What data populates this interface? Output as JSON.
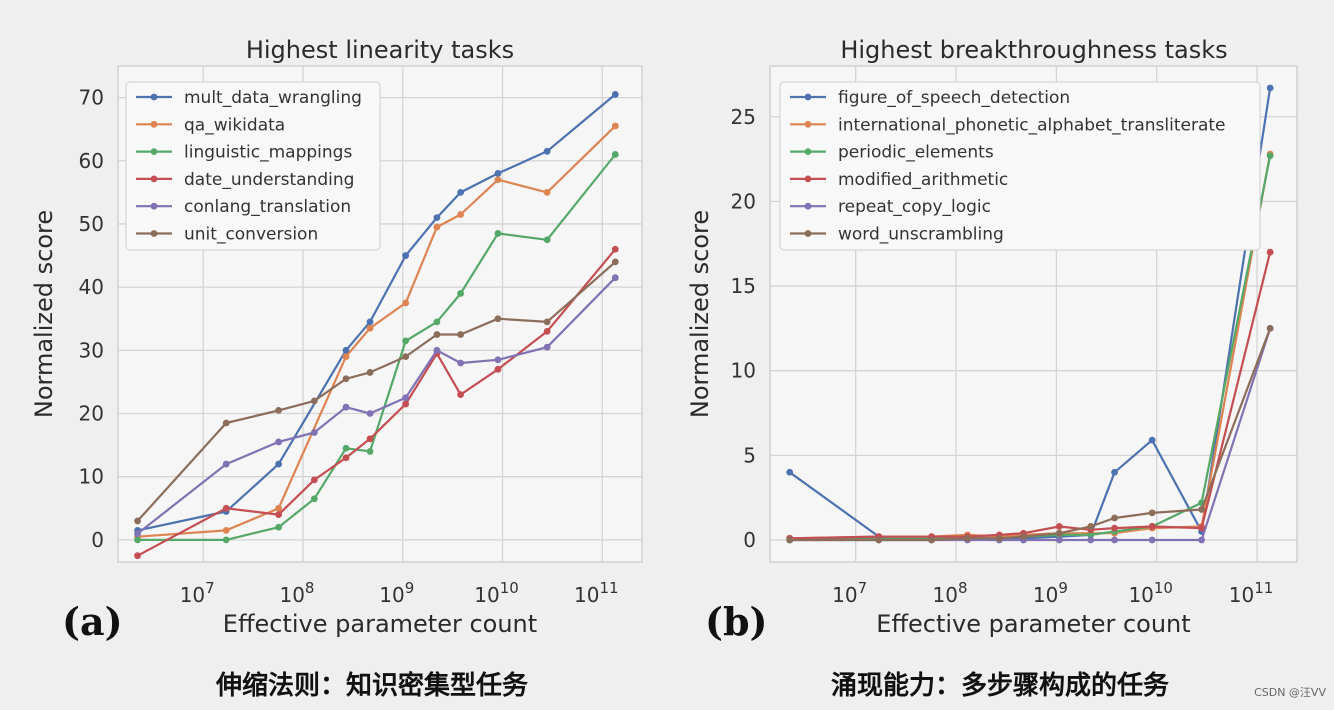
{
  "chart_data": [
    {
      "type": "line",
      "title": "Highest linearity tasks",
      "xlabel": "Effective parameter count",
      "ylabel": "Normalized score",
      "xscale": "log",
      "xlim": [
        1400000,
        250000000000
      ],
      "ylim": [
        -3.5,
        75
      ],
      "x_ticks": [
        {
          "value": 10000000,
          "base": "10",
          "exp": "7"
        },
        {
          "value": 100000000,
          "base": "10",
          "exp": "8"
        },
        {
          "value": 1000000000,
          "base": "10",
          "exp": "9"
        },
        {
          "value": 10000000000,
          "base": "10",
          "exp": "10"
        },
        {
          "value": 100000000000,
          "base": "10",
          "exp": "11"
        }
      ],
      "y_ticks": [
        0,
        10,
        20,
        30,
        40,
        50,
        60,
        70
      ],
      "grid": true,
      "legend_position": "upper-left",
      "panel_label": "(a)",
      "caption": "伸缩法则：知识密集型任务",
      "series": [
        {
          "name": "mult_data_wrangling",
          "color": "#4c72b0",
          "points": [
            [
              2200000,
              1.5
            ],
            [
              17000000,
              4.5
            ],
            [
              57000000,
              12
            ],
            [
              270000000,
              30
            ],
            [
              470000000,
              34.5
            ],
            [
              1070000000,
              45
            ],
            [
              2200000000,
              51
            ],
            [
              3800000000,
              55
            ],
            [
              9000000000,
              58
            ],
            [
              28000000000,
              61.5
            ],
            [
              135000000000,
              70.5
            ]
          ]
        },
        {
          "name": "qa_wikidata",
          "color": "#dd8452",
          "points": [
            [
              2200000,
              0.5
            ],
            [
              17000000,
              1.5
            ],
            [
              57000000,
              5
            ],
            [
              270000000,
              29
            ],
            [
              470000000,
              33.5
            ],
            [
              1070000000,
              37.5
            ],
            [
              2200000000,
              49.5
            ],
            [
              3800000000,
              51.5
            ],
            [
              9000000000,
              57
            ],
            [
              28000000000,
              55
            ],
            [
              135000000000,
              65.5
            ]
          ]
        },
        {
          "name": "linguistic_mappings",
          "color": "#55a868",
          "points": [
            [
              2200000,
              0
            ],
            [
              17000000,
              0
            ],
            [
              57000000,
              2
            ],
            [
              130000000,
              6.5
            ],
            [
              270000000,
              14.5
            ],
            [
              470000000,
              14
            ],
            [
              1070000000,
              31.5
            ],
            [
              2200000000,
              34.5
            ],
            [
              3800000000,
              39
            ],
            [
              9000000000,
              48.5
            ],
            [
              28000000000,
              47.5
            ],
            [
              135000000000,
              61
            ]
          ]
        },
        {
          "name": "date_understanding",
          "color": "#c44e52",
          "points": [
            [
              2200000,
              -2.5
            ],
            [
              17000000,
              5
            ],
            [
              57000000,
              4
            ],
            [
              130000000,
              9.5
            ],
            [
              270000000,
              13
            ],
            [
              470000000,
              16
            ],
            [
              1070000000,
              21.5
            ],
            [
              2200000000,
              29.5
            ],
            [
              3800000000,
              23
            ],
            [
              9000000000,
              27
            ],
            [
              28000000000,
              33
            ],
            [
              135000000000,
              46
            ]
          ]
        },
        {
          "name": "conlang_translation",
          "color": "#8172b3",
          "points": [
            [
              2200000,
              1
            ],
            [
              17000000,
              12
            ],
            [
              57000000,
              15.5
            ],
            [
              130000000,
              17
            ],
            [
              270000000,
              21
            ],
            [
              470000000,
              20
            ],
            [
              1070000000,
              22.5
            ],
            [
              2200000000,
              30
            ],
            [
              3800000000,
              28
            ],
            [
              9000000000,
              28.5
            ],
            [
              28000000000,
              30.5
            ],
            [
              135000000000,
              41.5
            ]
          ]
        },
        {
          "name": "unit_conversion",
          "color": "#8c6d5a",
          "points": [
            [
              2200000,
              3
            ],
            [
              17000000,
              18.5
            ],
            [
              57000000,
              20.5
            ],
            [
              130000000,
              22
            ],
            [
              270000000,
              25.5
            ],
            [
              470000000,
              26.5
            ],
            [
              1070000000,
              29
            ],
            [
              2200000000,
              32.5
            ],
            [
              3800000000,
              32.5
            ],
            [
              9000000000,
              35
            ],
            [
              28000000000,
              34.5
            ],
            [
              135000000000,
              44
            ]
          ]
        }
      ]
    },
    {
      "type": "line",
      "title": "Highest breakthroughness tasks",
      "xlabel": "Effective parameter count",
      "ylabel": "Normalized score",
      "xscale": "log",
      "xlim": [
        1400000,
        250000000000
      ],
      "ylim": [
        -1.3,
        28
      ],
      "x_ticks": [
        {
          "value": 10000000,
          "base": "10",
          "exp": "7"
        },
        {
          "value": 100000000,
          "base": "10",
          "exp": "8"
        },
        {
          "value": 1000000000,
          "base": "10",
          "exp": "9"
        },
        {
          "value": 10000000000,
          "base": "10",
          "exp": "10"
        },
        {
          "value": 100000000000,
          "base": "10",
          "exp": "11"
        }
      ],
      "y_ticks": [
        0,
        5,
        10,
        15,
        20,
        25
      ],
      "grid": true,
      "legend_position": "upper-left",
      "panel_label": "(b)",
      "caption": "涌现能力：多步骤构成的任务",
      "series": [
        {
          "name": "figure_of_speech_detection",
          "color": "#4c72b0",
          "points": [
            [
              2200000,
              4
            ],
            [
              17000000,
              0.2
            ],
            [
              57000000,
              0.1
            ],
            [
              130000000,
              0.1
            ],
            [
              270000000,
              0.1
            ],
            [
              470000000,
              0.1
            ],
            [
              1070000000,
              0.2
            ],
            [
              2200000000,
              0.3
            ],
            [
              3800000000,
              4
            ],
            [
              9000000000,
              5.9
            ],
            [
              28000000000,
              0.5
            ],
            [
              135000000000,
              26.7
            ]
          ]
        },
        {
          "name": "international_phonetic_alphabet_transliterate",
          "color": "#dd8452",
          "points": [
            [
              2200000,
              0.1
            ],
            [
              17000000,
              0.2
            ],
            [
              57000000,
              0.2
            ],
            [
              130000000,
              0.3
            ],
            [
              270000000,
              0.2
            ],
            [
              470000000,
              0.3
            ],
            [
              1070000000,
              0.4
            ],
            [
              2200000000,
              0.4
            ],
            [
              3800000000,
              0.4
            ],
            [
              9000000000,
              0.7
            ],
            [
              28000000000,
              0.8
            ],
            [
              135000000000,
              22.8
            ]
          ]
        },
        {
          "name": "periodic_elements",
          "color": "#55a868",
          "points": [
            [
              2200000,
              0
            ],
            [
              17000000,
              0.1
            ],
            [
              57000000,
              0.1
            ],
            [
              130000000,
              0.1
            ],
            [
              270000000,
              0.1
            ],
            [
              470000000,
              0.2
            ],
            [
              1070000000,
              0.3
            ],
            [
              2200000000,
              0.3
            ],
            [
              3800000000,
              0.5
            ],
            [
              9000000000,
              0.8
            ],
            [
              28000000000,
              2.2
            ],
            [
              135000000000,
              22.7
            ]
          ]
        },
        {
          "name": "modified_arithmetic",
          "color": "#c44e52",
          "points": [
            [
              2200000,
              0.1
            ],
            [
              17000000,
              0.2
            ],
            [
              57000000,
              0.2
            ],
            [
              130000000,
              0.2
            ],
            [
              270000000,
              0.3
            ],
            [
              470000000,
              0.4
            ],
            [
              1070000000,
              0.8
            ],
            [
              2200000000,
              0.6
            ],
            [
              3800000000,
              0.7
            ],
            [
              9000000000,
              0.8
            ],
            [
              28000000000,
              0.7
            ],
            [
              135000000000,
              17
            ]
          ]
        },
        {
          "name": "repeat_copy_logic",
          "color": "#8172b3",
          "points": [
            [
              2200000,
              0
            ],
            [
              17000000,
              0
            ],
            [
              57000000,
              0
            ],
            [
              130000000,
              0
            ],
            [
              270000000,
              0
            ],
            [
              470000000,
              0
            ],
            [
              1070000000,
              0
            ],
            [
              2200000000,
              0
            ],
            [
              3800000000,
              0
            ],
            [
              9000000000,
              0
            ],
            [
              28000000000,
              0
            ],
            [
              135000000000,
              12.5
            ]
          ]
        },
        {
          "name": "word_unscrambling",
          "color": "#8c6d5a",
          "points": [
            [
              2200000,
              0
            ],
            [
              17000000,
              0
            ],
            [
              57000000,
              0
            ],
            [
              130000000,
              0.1
            ],
            [
              270000000,
              0.1
            ],
            [
              470000000,
              0.2
            ],
            [
              1070000000,
              0.4
            ],
            [
              2200000000,
              0.8
            ],
            [
              3800000000,
              1.3
            ],
            [
              9000000000,
              1.6
            ],
            [
              28000000000,
              1.8
            ],
            [
              135000000000,
              12.5
            ]
          ]
        }
      ]
    }
  ],
  "watermark": "CSDN @汪VV"
}
